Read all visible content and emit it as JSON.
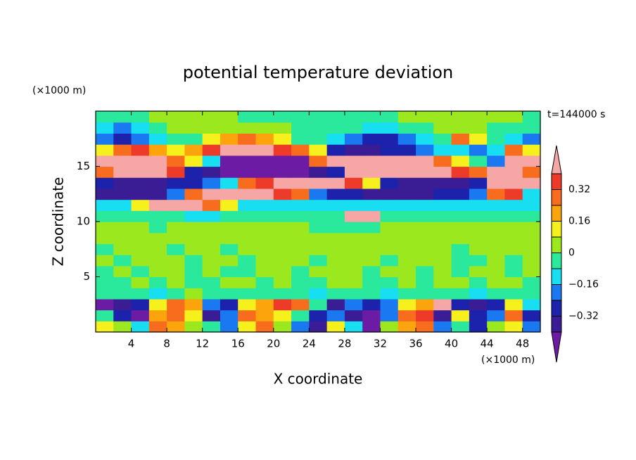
{
  "chart_data": {
    "type": "contour",
    "title": "potential temperature deviation",
    "x_label": "X coordinate",
    "y_label": "Z coordinate",
    "x_unit": "(×1000 m)",
    "y_unit": "(×1000 m)",
    "annotation": "t=144000 s",
    "xlim": [
      0,
      50
    ],
    "ylim": [
      0,
      20
    ],
    "xticks": [
      4,
      8,
      12,
      16,
      20,
      24,
      28,
      32,
      36,
      40,
      44,
      48
    ],
    "yticks": [
      5,
      10,
      15
    ],
    "x": [
      1,
      3,
      5,
      7,
      9,
      11,
      13,
      15,
      17,
      19,
      21,
      23,
      25,
      27,
      29,
      31,
      33,
      35,
      37,
      39,
      41,
      43,
      45,
      47,
      49
    ],
    "y": [
      0.5,
      1.5,
      2.5,
      3.5,
      4.5,
      5.5,
      6.5,
      7.5,
      8.5,
      9.5,
      10.5,
      11.5,
      12.5,
      13.5,
      14.5,
      15.5,
      16.5,
      17.5,
      18.5,
      19.5
    ],
    "levels": [
      -0.4,
      -0.32,
      -0.24,
      -0.16,
      -0.08,
      0,
      0.08,
      0.16,
      0.24,
      0.32,
      0.4
    ],
    "colors": [
      "#6c1ca4",
      "#3a1c94",
      "#1c22ac",
      "#1a78f0",
      "#18def2",
      "#2ae89c",
      "#9ce81e",
      "#f6f01c",
      "#fca40c",
      "#f86c1e",
      "#ee3a28",
      "#f7a6a6"
    ],
    "colorbar_ticks": [
      {
        "value": -0.32,
        "label": "−0.32"
      },
      {
        "value": -0.16,
        "label": "−0.16"
      },
      0,
      0.16,
      0.32
    ],
    "z": [
      [
        0.12,
        0.04,
        -0.12,
        0.28,
        0.2,
        0.04,
        -0.04,
        -0.2,
        0.12,
        0.28,
        0.04,
        -0.2,
        -0.36,
        0.12,
        -0.12,
        -0.45,
        0.04,
        0.2,
        0.28,
        -0.2,
        -0.04,
        -0.28,
        0.04,
        0.12,
        -0.2
      ],
      [
        -0.04,
        -0.28,
        -0.45,
        0.2,
        0.28,
        0.12,
        -0.36,
        -0.2,
        0.28,
        0.2,
        0.12,
        -0.04,
        -0.28,
        -0.2,
        -0.36,
        -0.45,
        -0.2,
        0.28,
        0.36,
        -0.36,
        0.12,
        -0.28,
        -0.2,
        0.28,
        -0.28
      ],
      [
        -0.45,
        -0.36,
        -0.28,
        0.12,
        0.28,
        0.2,
        -0.2,
        -0.28,
        0.12,
        0.2,
        0.36,
        0.28,
        -0.04,
        -0.36,
        -0.2,
        -0.28,
        -0.2,
        0.12,
        0.2,
        0.45,
        -0.28,
        -0.36,
        -0.28,
        0.12,
        -0.12
      ],
      [
        -0.04,
        -0.04,
        -0.04,
        -0.12,
        -0.04,
        0.04,
        -0.04,
        -0.04,
        -0.04,
        -0.04,
        -0.04,
        -0.04,
        -0.12,
        -0.04,
        -0.04,
        -0.04,
        -0.12,
        -0.04,
        -0.04,
        -0.04,
        -0.04,
        -0.12,
        -0.04,
        -0.04,
        -0.04
      ],
      [
        -0.04,
        -0.04,
        0.04,
        -0.04,
        0.04,
        -0.04,
        -0.04,
        0.04,
        0.04,
        -0.04,
        0.04,
        -0.04,
        -0.04,
        0.04,
        0.04,
        -0.04,
        -0.04,
        0.04,
        -0.04,
        0.04,
        0.04,
        -0.04,
        0.04,
        0.04,
        -0.04
      ],
      [
        -0.04,
        0.04,
        -0.04,
        0.04,
        0.04,
        -0.04,
        0.04,
        -0.04,
        -0.04,
        0.04,
        0.04,
        -0.04,
        0.04,
        0.04,
        0.04,
        -0.04,
        0.04,
        0.04,
        -0.04,
        0.04,
        -0.04,
        0.04,
        0.04,
        -0.04,
        0.04
      ],
      [
        0.04,
        -0.04,
        0.04,
        0.04,
        0.04,
        -0.04,
        0.04,
        0.04,
        -0.04,
        0.04,
        0.04,
        0.04,
        -0.04,
        0.04,
        0.04,
        0.04,
        -0.04,
        0.04,
        0.04,
        0.04,
        -0.04,
        -0.04,
        0.04,
        -0.04,
        0.04
      ],
      [
        -0.04,
        0.04,
        0.04,
        0.04,
        -0.04,
        0.04,
        0.04,
        -0.04,
        0.04,
        0.04,
        0.04,
        0.04,
        0.04,
        0.04,
        0.04,
        0.04,
        0.04,
        0.04,
        0.04,
        0.04,
        -0.04,
        0.04,
        0.04,
        0.04,
        0.04
      ],
      [
        0.04,
        0.04,
        0.04,
        0.04,
        0.04,
        0.04,
        0.04,
        0.04,
        0.04,
        0.04,
        0.04,
        0.04,
        0.04,
        0.04,
        0.04,
        0.04,
        0.04,
        0.04,
        0.04,
        0.04,
        0.04,
        0.04,
        0.04,
        0.04,
        0.04
      ],
      [
        0.04,
        0.04,
        0.04,
        -0.04,
        0.04,
        0.04,
        0.04,
        0.04,
        0.04,
        0.04,
        0.04,
        0.04,
        -0.04,
        -0.04,
        -0.04,
        -0.04,
        0.04,
        0.04,
        0.04,
        0.04,
        0.04,
        0.04,
        0.04,
        0.04,
        0.04
      ],
      [
        -0.04,
        -0.04,
        -0.04,
        -0.04,
        -0.04,
        -0.12,
        -0.12,
        -0.04,
        -0.04,
        -0.04,
        -0.04,
        -0.04,
        -0.04,
        -0.04,
        0.45,
        0.45,
        -0.04,
        -0.04,
        -0.04,
        -0.04,
        -0.04,
        -0.04,
        -0.04,
        -0.04,
        -0.04
      ],
      [
        -0.12,
        -0.12,
        0.12,
        0.45,
        0.45,
        0.45,
        0.28,
        0.12,
        -0.12,
        -0.12,
        -0.12,
        -0.12,
        -0.12,
        -0.12,
        -0.12,
        -0.12,
        -0.12,
        -0.12,
        -0.12,
        -0.12,
        -0.12,
        -0.12,
        -0.12,
        -0.12,
        -0.12
      ],
      [
        -0.36,
        -0.36,
        -0.36,
        -0.36,
        -0.2,
        0.28,
        0.45,
        0.45,
        0.45,
        0.45,
        0.36,
        0.28,
        -0.2,
        -0.28,
        -0.28,
        -0.36,
        -0.36,
        -0.36,
        -0.36,
        -0.28,
        -0.28,
        -0.2,
        0.28,
        0.36,
        -0.12
      ],
      [
        -0.28,
        -0.36,
        -0.36,
        -0.36,
        -0.28,
        -0.28,
        -0.2,
        -0.12,
        0.28,
        0.36,
        0.45,
        0.45,
        0.45,
        0.45,
        0.36,
        0.12,
        -0.28,
        -0.36,
        -0.36,
        -0.36,
        -0.36,
        -0.28,
        0.45,
        0.45,
        0.45
      ],
      [
        0.28,
        0.45,
        0.45,
        0.45,
        0.36,
        -0.28,
        -0.36,
        -0.45,
        -0.45,
        -0.45,
        -0.45,
        -0.45,
        -0.36,
        -0.28,
        0.45,
        0.45,
        0.45,
        0.45,
        0.45,
        0.45,
        0.36,
        0.28,
        0.45,
        0.45,
        0.28
      ],
      [
        0.45,
        0.45,
        0.45,
        0.45,
        0.28,
        0.12,
        -0.12,
        -0.45,
        -0.45,
        -0.45,
        -0.45,
        -0.45,
        0.28,
        0.45,
        0.45,
        0.45,
        0.45,
        0.45,
        0.45,
        0.28,
        0.12,
        -0.04,
        -0.2,
        0.45,
        0.45
      ],
      [
        0.12,
        0.28,
        0.36,
        0.2,
        0.12,
        0.2,
        0.36,
        0.45,
        0.45,
        0.45,
        0.36,
        0.28,
        0.12,
        -0.28,
        -0.36,
        -0.36,
        -0.28,
        -0.28,
        -0.2,
        -0.12,
        -0.12,
        -0.2,
        -0.12,
        0.28,
        0.12
      ],
      [
        -0.2,
        -0.28,
        -0.2,
        -0.12,
        -0.04,
        -0.04,
        0.12,
        0.2,
        0.28,
        0.2,
        0.12,
        -0.04,
        -0.04,
        -0.12,
        -0.2,
        -0.28,
        -0.28,
        -0.2,
        -0.12,
        -0.04,
        0.28,
        0.12,
        -0.04,
        -0.12,
        -0.2
      ],
      [
        -0.12,
        -0.2,
        -0.12,
        -0.04,
        0.04,
        0.04,
        0.04,
        0.04,
        0.04,
        0.04,
        0.04,
        -0.04,
        -0.04,
        -0.04,
        -0.04,
        -0.12,
        -0.12,
        -0.04,
        -0.04,
        0.04,
        0.04,
        0.04,
        -0.04,
        -0.04,
        -0.04
      ],
      [
        -0.04,
        -0.04,
        -0.04,
        0.04,
        0.04,
        0.04,
        0.04,
        0.04,
        -0.04,
        -0.04,
        -0.04,
        -0.04,
        -0.04,
        -0.04,
        -0.04,
        -0.04,
        -0.04,
        0.04,
        0.04,
        0.04,
        0.04,
        0.04,
        0.04,
        0.04,
        -0.04
      ]
    ]
  }
}
